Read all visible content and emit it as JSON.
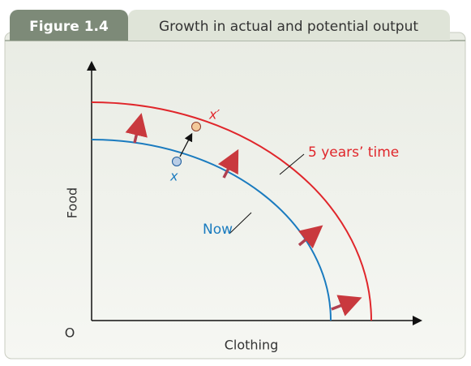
{
  "figure": {
    "number": "Figure 1.4",
    "title": "Growth in actual and potential output"
  },
  "axes": {
    "y": "Food",
    "x": "Clothing",
    "origin": "O"
  },
  "curves": [
    {
      "label": "Now"
    },
    {
      "label": "5 years’ time"
    }
  ],
  "points": [
    {
      "label": "x"
    },
    {
      "label": "x′"
    }
  ]
}
